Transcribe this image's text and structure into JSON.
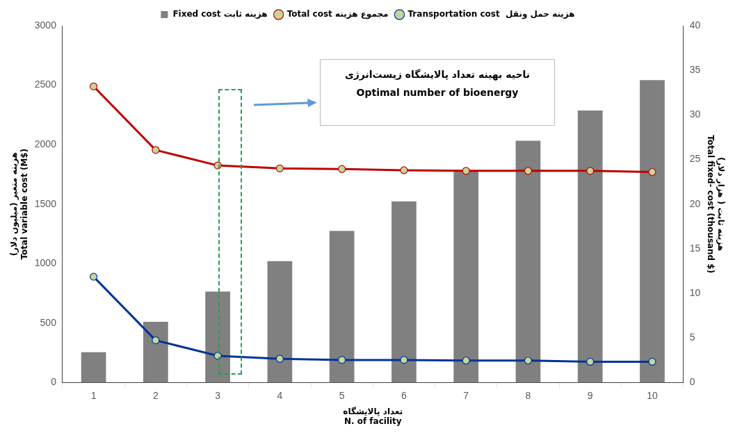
{
  "chart_data": {
    "type": "bar",
    "categories": [
      "1",
      "2",
      "3",
      "4",
      "5",
      "6",
      "7",
      "8",
      "9",
      "10"
    ],
    "xlabel": "تعداد پالایشگاه\nN. of facility",
    "ylabel": "هزینه متغیر (میلیون دلار)\nTotal variable cost (M$)",
    "y2label": "هزینه ثابت ( هزار دلار)\nTotal fixed- cost (thousand $)",
    "series": [
      {
        "name": "Fixed cost هزینه ثابت",
        "axis": "y2",
        "color": "#808080",
        "values": [
          3.4,
          6.8,
          10.2,
          13.6,
          17,
          20.3,
          23.7,
          27.1,
          30.5,
          33.9
        ]
      },
      {
        "name": "Total cost مجموع هزینه",
        "type": "line",
        "color": "#c00000",
        "values": [
          2490,
          1955,
          1825,
          1800,
          1795,
          1785,
          1780,
          1780,
          1780,
          1770
        ]
      },
      {
        "name": "Transportation cost  هزینه حمل ونقل",
        "type": "line",
        "color": "#003399",
        "values": [
          890,
          355,
          225,
          200,
          190,
          190,
          185,
          185,
          175,
          175
        ]
      }
    ],
    "ylim": [
      0,
      3000
    ],
    "yticks": [
      0,
      500,
      1000,
      1500,
      2000,
      2500,
      3000
    ],
    "y2lim": [
      0,
      40
    ],
    "y2ticks": [
      0,
      5,
      10,
      15,
      20,
      25,
      30,
      35,
      40
    ],
    "annotations": [
      "ناحیه بهینه تعداد پالایشگاه زیست‌انرژی",
      "Optimal number of bioenergy"
    ],
    "legend": "top",
    "marker": "circle",
    "line_style": "solid",
    "grid": false
  }
}
